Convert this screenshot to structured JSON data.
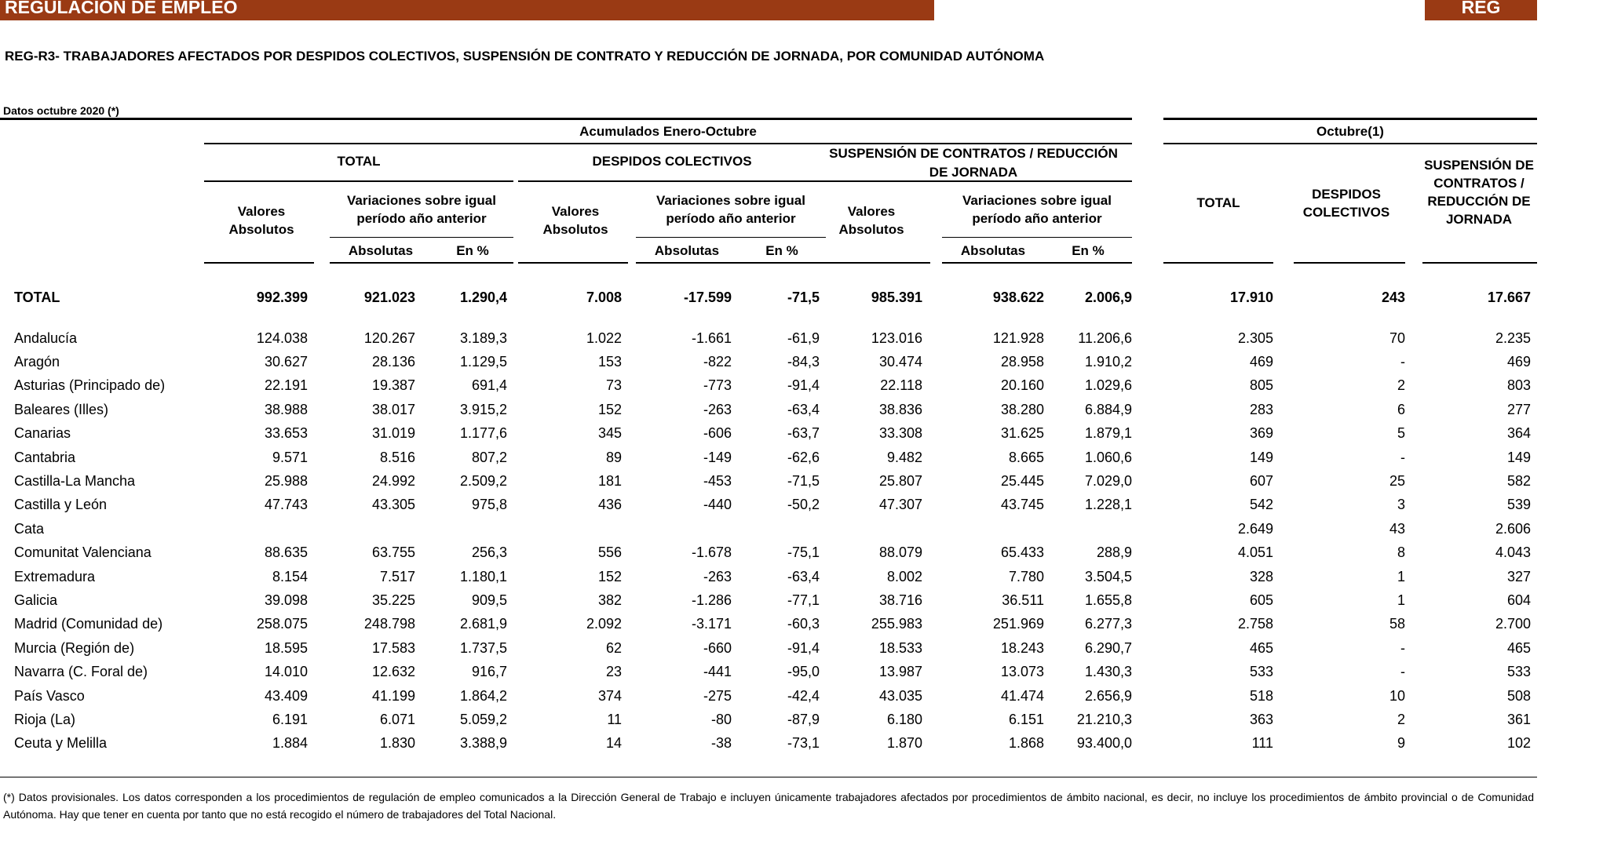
{
  "header": {
    "banner_title": "REGULACIÓN DE EMPLEO",
    "banner_code": "REG",
    "title": "REG-R3- TRABAJADORES AFECTADOS POR DESPIDOS COLECTIVOS, SUSPENSIÓN DE CONTRATO Y REDUCCIÓN DE JORNADA, POR COMUNIDAD AUTÓNOMA",
    "date_label": "Datos octubre 2020 (*)"
  },
  "columns": {
    "accumulated": "Acumulados Enero-Octubre",
    "october": "Octubre(1)",
    "total": "TOTAL",
    "despidos": "DESPIDOS COLECTIVOS",
    "suspension": "SUSPENSIÓN DE CONTRATOS / REDUCCIÓN DE JORNADA",
    "valores_absolutos": "Valores Absolutos",
    "variaciones": "Variaciones sobre igual período año anterior",
    "absolutas": "Absolutas",
    "en_pct": "En %",
    "oct_total": "TOTAL",
    "oct_despidos": "DESPIDOS COLECTIVOS",
    "oct_suspension": "SUSPENSIÓN DE CONTRATOS / REDUCCIÓN DE JORNADA"
  },
  "total_row": [
    "TOTAL",
    "992.399",
    "921.023",
    "1.290,4",
    "7.008",
    "-17.599",
    "-71,5",
    "985.391",
    "938.622",
    "2.006,9",
    "17.910",
    "243",
    "17.667"
  ],
  "rows": [
    [
      "Andalucía",
      "124.038",
      "120.267",
      "3.189,3",
      "1.022",
      "-1.661",
      "-61,9",
      "123.016",
      "121.928",
      "11.206,6",
      "2.305",
      "70",
      "2.235"
    ],
    [
      "Aragón",
      "30.627",
      "28.136",
      "1.129,5",
      "153",
      "-822",
      "-84,3",
      "30.474",
      "28.958",
      "1.910,2",
      "469",
      "-",
      "469"
    ],
    [
      "Asturias (Principado de)",
      "22.191",
      "19.387",
      "691,4",
      "73",
      "-773",
      "-91,4",
      "22.118",
      "20.160",
      "1.029,6",
      "805",
      "2",
      "803"
    ],
    [
      "Baleares (Illes)",
      "38.988",
      "38.017",
      "3.915,2",
      "152",
      "-263",
      "-63,4",
      "38.836",
      "38.280",
      "6.884,9",
      "283",
      "6",
      "277"
    ],
    [
      "Canarias",
      "33.653",
      "31.019",
      "1.177,6",
      "345",
      "-606",
      "-63,7",
      "33.308",
      "31.625",
      "1.879,1",
      "369",
      "5",
      "364"
    ],
    [
      "Cantabria",
      "9.571",
      "8.516",
      "807,2",
      "89",
      "-149",
      "-62,6",
      "9.482",
      "8.665",
      "1.060,6",
      "149",
      "-",
      "149"
    ],
    [
      "Castilla-La Mancha",
      "25.988",
      "24.992",
      "2.509,2",
      "181",
      "-453",
      "-71,5",
      "25.807",
      "25.445",
      "7.029,0",
      "607",
      "25",
      "582"
    ],
    [
      "Castilla y León",
      "47.743",
      "43.305",
      "975,8",
      "436",
      "-440",
      "-50,2",
      "47.307",
      "43.745",
      "1.228,1",
      "542",
      "3",
      "539"
    ],
    [
      "Cata",
      "",
      "",
      "",
      "",
      "",
      "",
      "",
      "",
      "",
      "2.649",
      "43",
      "2.606"
    ],
    [
      "Comunitat Valenciana",
      "88.635",
      "63.755",
      "256,3",
      "556",
      "-1.678",
      "-75,1",
      "88.079",
      "65.433",
      "288,9",
      "4.051",
      "8",
      "4.043"
    ],
    [
      "Extremadura",
      "8.154",
      "7.517",
      "1.180,1",
      "152",
      "-263",
      "-63,4",
      "8.002",
      "7.780",
      "3.504,5",
      "328",
      "1",
      "327"
    ],
    [
      "Galicia",
      "39.098",
      "35.225",
      "909,5",
      "382",
      "-1.286",
      "-77,1",
      "38.716",
      "36.511",
      "1.655,8",
      "605",
      "1",
      "604"
    ],
    [
      "Madrid (Comunidad de)",
      "258.075",
      "248.798",
      "2.681,9",
      "2.092",
      "-3.171",
      "-60,3",
      "255.983",
      "251.969",
      "6.277,3",
      "2.758",
      "58",
      "2.700"
    ],
    [
      "Murcia (Región de)",
      "18.595",
      "17.583",
      "1.737,5",
      "62",
      "-660",
      "-91,4",
      "18.533",
      "18.243",
      "6.290,7",
      "465",
      "-",
      "465"
    ],
    [
      "Navarra (C. Foral de)",
      "14.010",
      "12.632",
      "916,7",
      "23",
      "-441",
      "-95,0",
      "13.987",
      "13.073",
      "1.430,3",
      "533",
      "-",
      "533"
    ],
    [
      "País Vasco",
      "43.409",
      "41.199",
      "1.864,2",
      "374",
      "-275",
      "-42,4",
      "43.035",
      "41.474",
      "2.656,9",
      "518",
      "10",
      "508"
    ],
    [
      "Rioja (La)",
      "6.191",
      "6.071",
      "5.059,2",
      "11",
      "-80",
      "-87,9",
      "6.180",
      "6.151",
      "21.210,3",
      "363",
      "2",
      "361"
    ],
    [
      "Ceuta y Melilla",
      "1.884",
      "1.830",
      "3.388,9",
      "14",
      "-38",
      "-73,1",
      "1.870",
      "1.868",
      "93.400,0",
      "111",
      "9",
      "102"
    ]
  ],
  "footnote": "(*) Datos provisionales. Los datos corresponden a los procedimientos de regulación de empleo comunicados a la Dirección General de Trabajo e incluyen únicamente trabajadores afectados por procedimientos de ámbito nacional, es decir, no incluye los procedimientos de ámbito provincial o de Comunidad Autónoma. Hay que tener en cuenta por tanto que no está recogido el número de trabajadores del Total Nacional."
}
